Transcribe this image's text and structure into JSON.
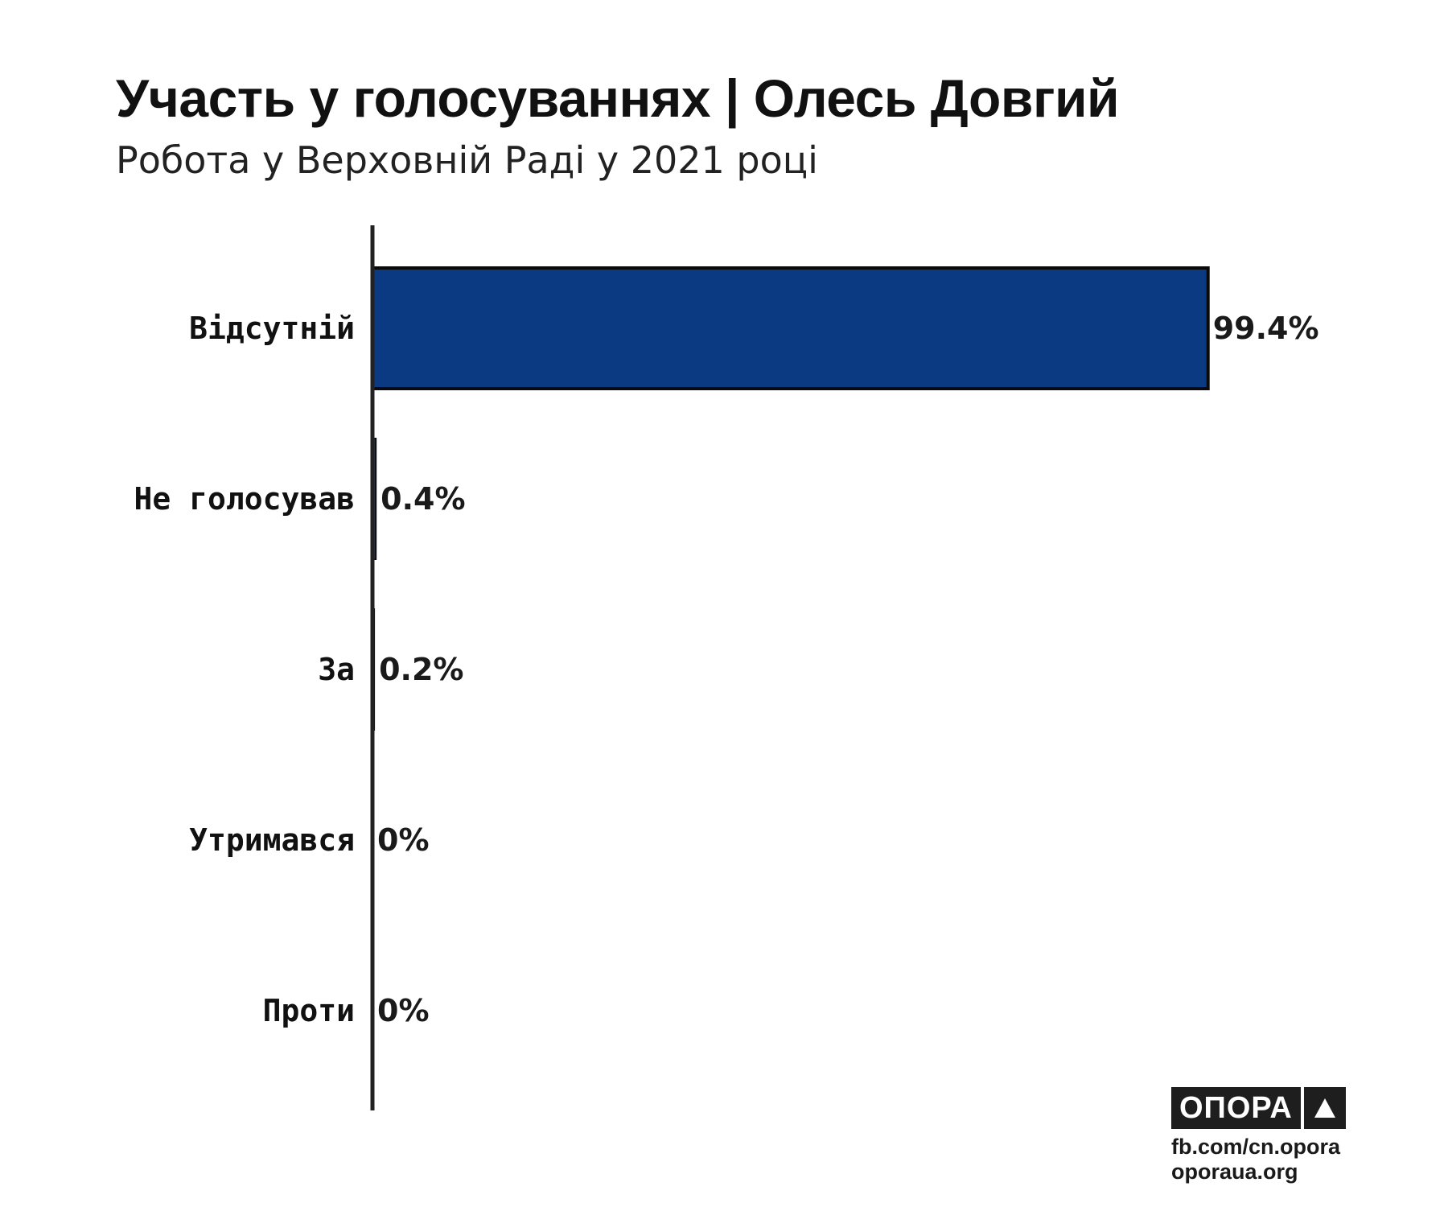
{
  "header": {
    "title": "Участь у голосуваннях | Олесь Довгий",
    "subtitle": "Робота у Верховній Раді у 2021 році"
  },
  "chart_data": {
    "type": "bar",
    "orientation": "horizontal",
    "title": "Участь у голосуваннях | Олесь Довгий",
    "subtitle": "Робота у Верховній Раді у 2021 році",
    "categories": [
      "Відсутній",
      "Не голосував",
      "За",
      "Утримався",
      "Проти"
    ],
    "values": [
      99.4,
      0.4,
      0.2,
      0,
      0
    ],
    "value_labels": [
      "99.4%",
      "0.4%",
      "0.2%",
      "0%",
      "0%"
    ],
    "xlim": [
      0,
      100
    ],
    "grid": false,
    "legend": "none",
    "colors": {
      "bar_fill": "#0b3a82",
      "bar_stroke": "#0a0a0a",
      "axis": "#222222"
    }
  },
  "branding": {
    "logo_text": "ОПОРА",
    "logo_icon": "triangle-up-icon",
    "link_facebook": "fb.com/cn.opora",
    "link_site": "oporaua.org"
  }
}
